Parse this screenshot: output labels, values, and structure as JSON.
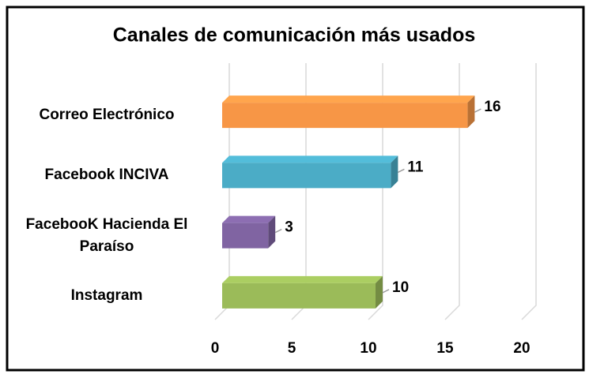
{
  "chart_data": {
    "type": "bar",
    "orientation": "horizontal",
    "title": "Canales de comunicación más usados",
    "categories": [
      "Correo Electrónico",
      "Facebook INCIVA",
      "FacebooK Hacienda El Paraíso",
      "Instagram"
    ],
    "values": [
      16,
      11,
      3,
      10
    ],
    "colors": [
      "#f79646",
      "#4bacc6",
      "#8064a2",
      "#9bbb59"
    ],
    "xlim": [
      0,
      20
    ],
    "xticks": [
      0,
      5,
      10,
      15,
      20
    ],
    "grid": true
  }
}
